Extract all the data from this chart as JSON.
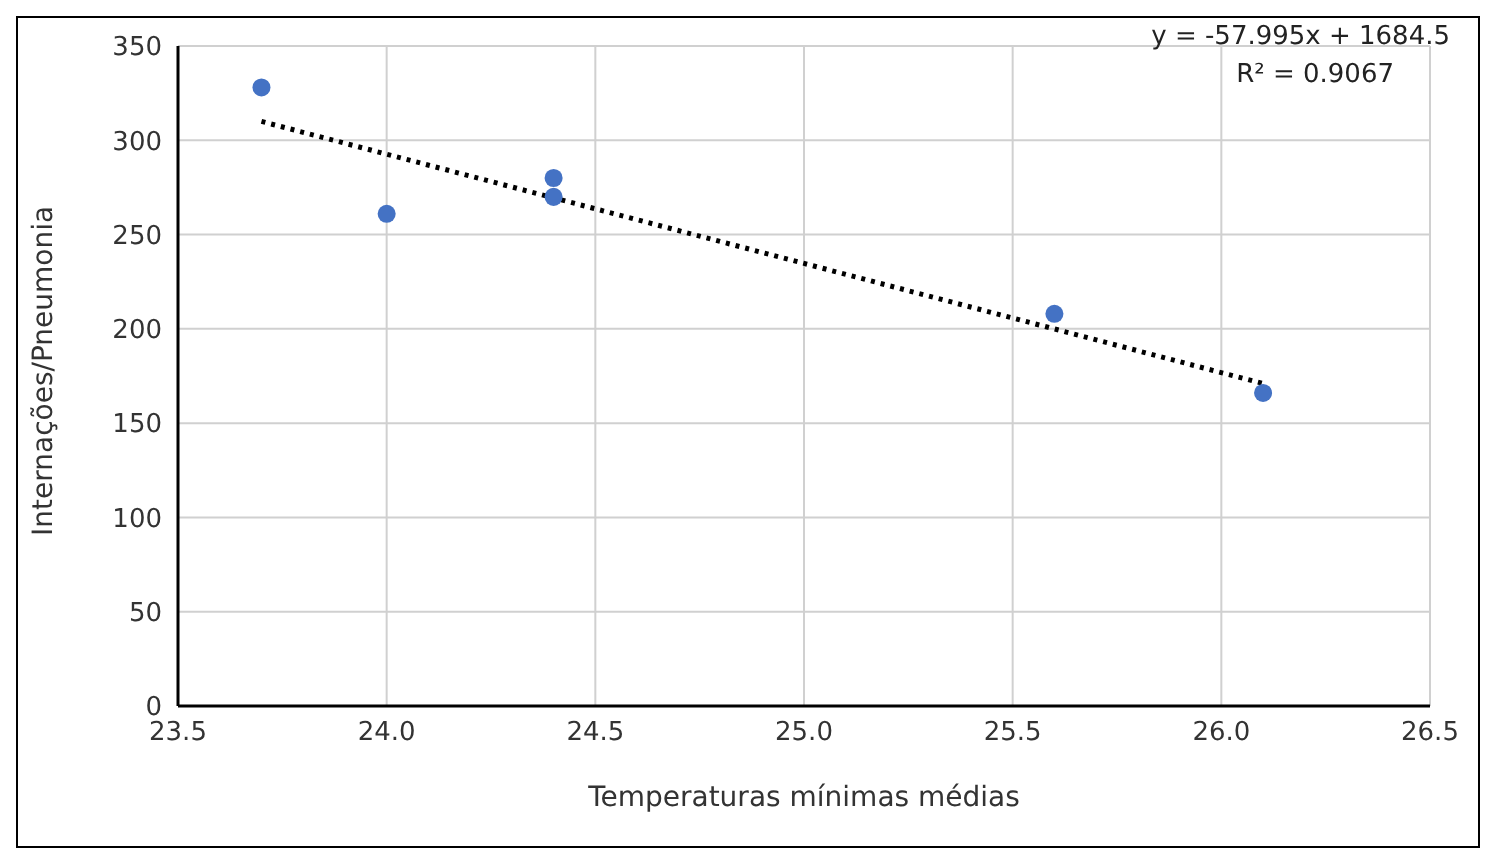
{
  "chart_data": {
    "type": "scatter",
    "xlabel": "Temperaturas mínimas médias",
    "ylabel": "Internações/Pneumonia",
    "series": [
      {
        "color": "#4472c4",
        "x": [
          23.7,
          24.0,
          24.4,
          24.4,
          25.6,
          26.1
        ],
        "values": [
          328,
          261,
          280,
          270,
          208,
          166
        ],
        "marker": "circle"
      },
      {
        "type": "line",
        "color": "#000000",
        "x": [
          23.7,
          26.1
        ],
        "values": [
          310,
          171
        ],
        "line_style": "dotted",
        "marker": "none"
      }
    ],
    "xlim": [
      23.5,
      26.5
    ],
    "xticks": [
      {
        "value": 23.5,
        "label": "23.5"
      },
      {
        "value": 24,
        "label": "24.0"
      },
      {
        "value": 24.5,
        "label": "24.5"
      },
      {
        "value": 25,
        "label": "25.0"
      },
      {
        "value": 25.5,
        "label": "25.5"
      },
      {
        "value": 26,
        "label": "26.0"
      },
      {
        "value": 26.5,
        "label": "26.5"
      }
    ],
    "ylim": [
      0,
      350
    ],
    "yticks": [
      0,
      50,
      100,
      150,
      200,
      250,
      300,
      350
    ],
    "grid": true,
    "annotations": [
      "y = -57.995x + 1684.5",
      "R² = 0.9067"
    ]
  }
}
